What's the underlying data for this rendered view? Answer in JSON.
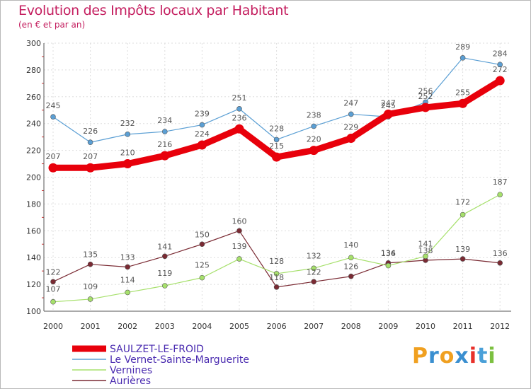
{
  "chart_data": {
    "type": "line",
    "title": "Evolution des Impôts locaux par Habitant",
    "subtitle": "(en € et par an)",
    "x": [
      "2000",
      "2001",
      "2002",
      "2003",
      "2004",
      "2005",
      "2006",
      "2007",
      "2008",
      "2009",
      "2010",
      "2011",
      "2012"
    ],
    "ylim": [
      100,
      300
    ],
    "yticks": [
      100,
      120,
      140,
      160,
      180,
      200,
      220,
      240,
      260,
      280,
      300
    ],
    "grid": true,
    "legend_position": "bottom-left",
    "series": [
      {
        "name": "SAULZET-LE-FROID",
        "color": "#e8000b",
        "values": [
          207,
          207,
          210,
          216,
          224,
          236,
          215,
          220,
          229,
          247,
          252,
          255,
          272
        ]
      },
      {
        "name": "Le Vernet-Sainte-Marguerite",
        "color": "#5b9fd4",
        "values": [
          245,
          226,
          232,
          234,
          239,
          251,
          228,
          238,
          247,
          245,
          256,
          289,
          284
        ]
      },
      {
        "name": "Vernines",
        "color": "#a6e06b",
        "values": [
          107,
          109,
          114,
          119,
          125,
          139,
          128,
          132,
          140,
          134,
          141,
          172,
          187
        ]
      },
      {
        "name": "Aurières",
        "color": "#7a2a33",
        "values": [
          122,
          135,
          133,
          141,
          150,
          160,
          118,
          122,
          126,
          136,
          138,
          139,
          136
        ]
      }
    ]
  },
  "logo": {
    "text": "Proxiti",
    "letters": [
      "P",
      "r",
      "o",
      "x",
      "i",
      "t",
      "i"
    ],
    "colors": [
      "#f0a020",
      "#3a8fd0",
      "#f0a020",
      "#3a8fd0",
      "#e8302a",
      "#4aa0d8",
      "#7cc040"
    ]
  }
}
